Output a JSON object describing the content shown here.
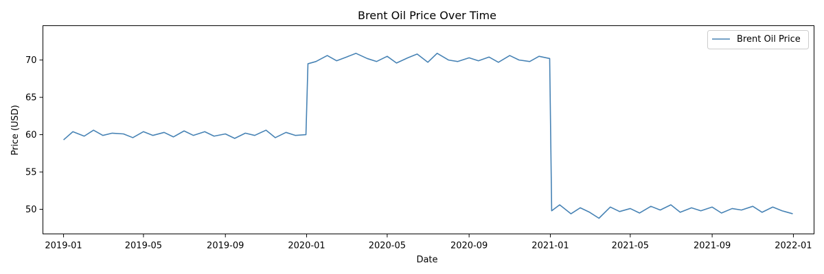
{
  "chart_data": {
    "type": "line",
    "title": "Brent Oil Price Over Time",
    "xlabel": "Date",
    "ylabel": "Price (USD)",
    "xlim": [
      "2018-12-01",
      "2022-02-01"
    ],
    "ylim": [
      46.7,
      74.6
    ],
    "x_ticks": [
      "2019-01",
      "2019-05",
      "2019-09",
      "2020-01",
      "2020-05",
      "2020-09",
      "2021-01",
      "2021-05",
      "2021-09",
      "2022-01"
    ],
    "y_ticks": [
      50,
      55,
      60,
      65,
      70
    ],
    "grid": false,
    "legend_position": "top-right",
    "series": [
      {
        "name": "Brent Oil Price",
        "color": "#4682b4",
        "x": [
          "2019-01-01",
          "2019-01-15",
          "2019-02-01",
          "2019-02-15",
          "2019-03-01",
          "2019-03-15",
          "2019-04-01",
          "2019-04-15",
          "2019-05-01",
          "2019-05-15",
          "2019-06-01",
          "2019-06-15",
          "2019-07-01",
          "2019-07-15",
          "2019-08-01",
          "2019-08-15",
          "2019-09-01",
          "2019-09-15",
          "2019-10-01",
          "2019-10-15",
          "2019-11-01",
          "2019-11-15",
          "2019-12-01",
          "2019-12-15",
          "2019-12-31",
          "2020-01-03",
          "2020-01-15",
          "2020-02-01",
          "2020-02-15",
          "2020-03-01",
          "2020-03-15",
          "2020-04-01",
          "2020-04-15",
          "2020-05-01",
          "2020-05-15",
          "2020-06-01",
          "2020-06-15",
          "2020-07-01",
          "2020-07-15",
          "2020-08-01",
          "2020-08-15",
          "2020-09-01",
          "2020-09-15",
          "2020-10-01",
          "2020-10-15",
          "2020-11-01",
          "2020-11-15",
          "2020-12-01",
          "2020-12-15",
          "2020-12-31",
          "2021-01-03",
          "2021-01-15",
          "2021-02-01",
          "2021-02-15",
          "2021-03-01",
          "2021-03-15",
          "2021-04-01",
          "2021-04-15",
          "2021-05-01",
          "2021-05-15",
          "2021-06-01",
          "2021-06-15",
          "2021-07-01",
          "2021-07-15",
          "2021-08-01",
          "2021-08-15",
          "2021-09-01",
          "2021-09-15",
          "2021-10-01",
          "2021-10-15",
          "2021-11-01",
          "2021-11-15",
          "2021-12-01",
          "2021-12-15",
          "2021-12-31"
        ],
        "values": [
          59.3,
          60.4,
          59.8,
          60.6,
          59.9,
          60.2,
          60.1,
          59.6,
          60.4,
          59.9,
          60.3,
          59.7,
          60.5,
          59.9,
          60.4,
          59.8,
          60.1,
          59.5,
          60.2,
          59.9,
          60.6,
          59.6,
          60.3,
          59.9,
          60.0,
          69.5,
          69.8,
          70.6,
          69.9,
          70.4,
          70.9,
          70.2,
          69.8,
          70.5,
          69.6,
          70.3,
          70.8,
          69.7,
          70.9,
          70.0,
          69.8,
          70.3,
          69.9,
          70.4,
          69.7,
          70.6,
          70.0,
          69.8,
          70.5,
          70.2,
          49.8,
          50.6,
          49.4,
          50.2,
          49.6,
          48.8,
          50.3,
          49.7,
          50.1,
          49.5,
          50.4,
          49.9,
          50.6,
          49.6,
          50.2,
          49.8,
          50.3,
          49.5,
          50.1,
          49.9,
          50.4,
          49.6,
          50.3,
          49.8,
          49.4
        ]
      }
    ]
  }
}
